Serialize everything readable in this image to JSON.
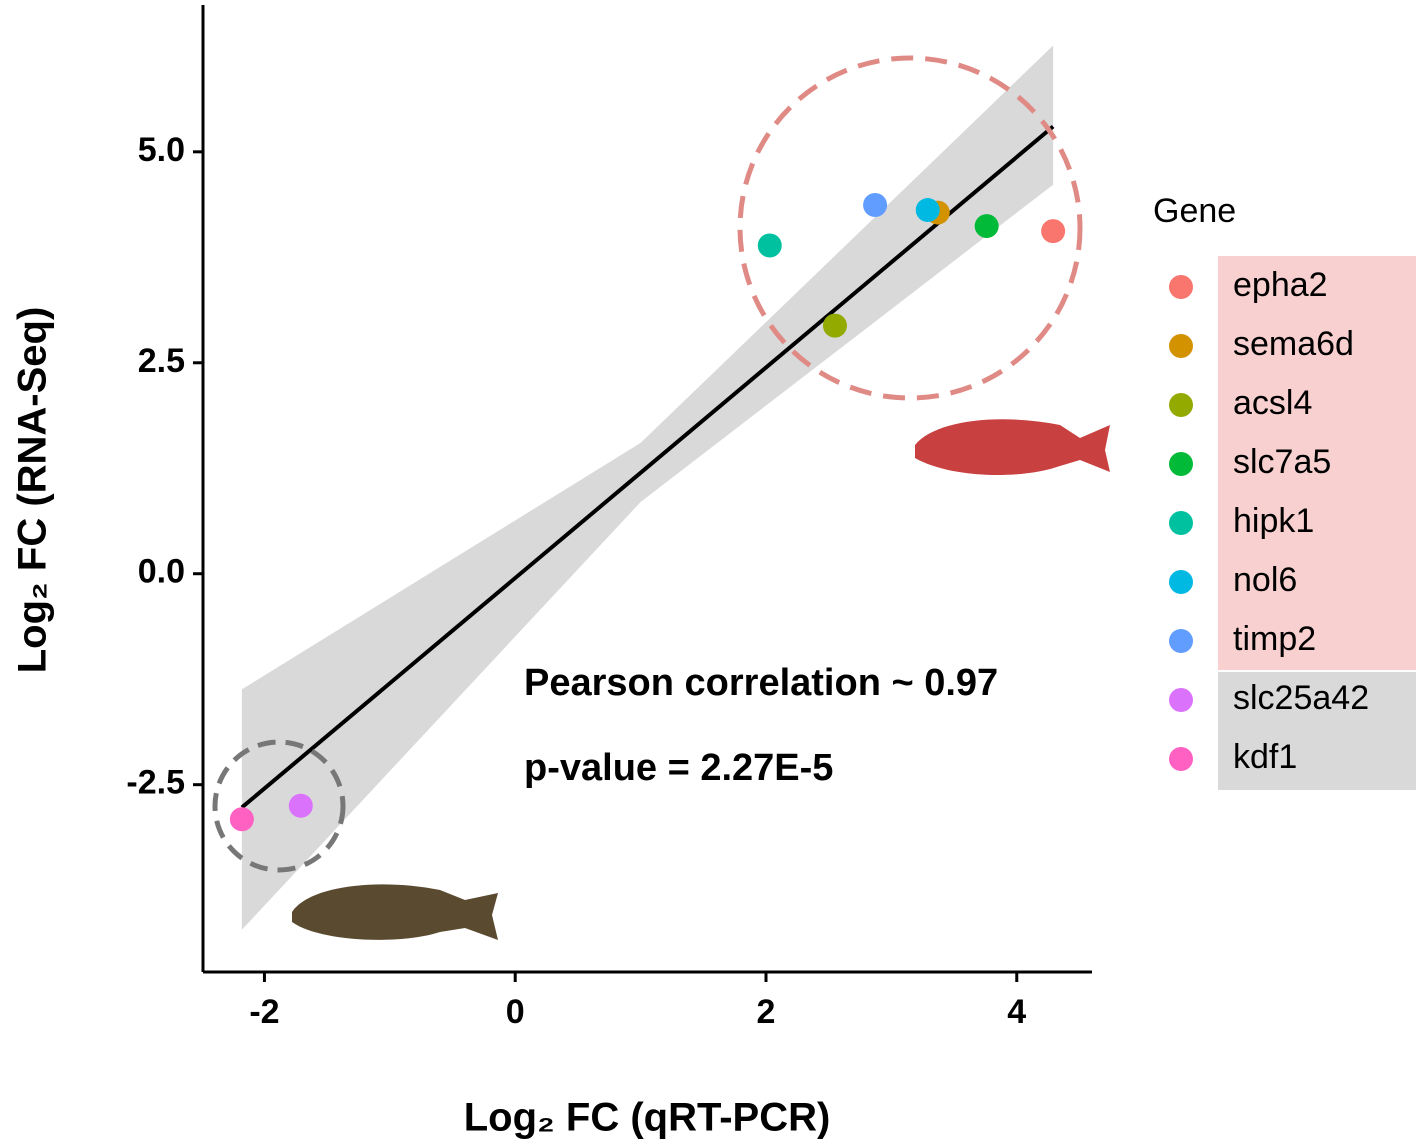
{
  "chart_data": {
    "type": "scatter",
    "x_label": "Log₂ FC (qRT-PCR)",
    "y_label": "Log₂ FC (RNA-Seq)",
    "xlim": [
      -2.49,
      4.6
    ],
    "ylim": [
      -4.72,
      6.74
    ],
    "xticks": [
      -2,
      0,
      2,
      4
    ],
    "yticks": [
      -2.5,
      {
        "value": 0,
        "label": "0.0"
      },
      2.5,
      {
        "value": 5,
        "label": "5.0"
      }
    ],
    "legend_title": "Gene",
    "series": [
      {
        "name": "epha2",
        "color": "#F8766D",
        "x": [
          4.29
        ],
        "values": [
          4.06
        ]
      },
      {
        "name": "sema6d",
        "color": "#D39200",
        "x": [
          3.37
        ],
        "values": [
          4.28
        ]
      },
      {
        "name": "acsl4",
        "color": "#93AA00",
        "x": [
          2.55
        ],
        "values": [
          2.94
        ]
      },
      {
        "name": "slc7a5",
        "color": "#00BA38",
        "x": [
          3.76
        ],
        "values": [
          4.12
        ]
      },
      {
        "name": "hipk1",
        "color": "#00C19F",
        "x": [
          2.03
        ],
        "values": [
          3.89
        ]
      },
      {
        "name": "nol6",
        "color": "#00B9E3",
        "x": [
          3.29
        ],
        "values": [
          4.31
        ]
      },
      {
        "name": "timp2",
        "color": "#619CFF",
        "x": [
          2.87
        ],
        "values": [
          4.37
        ]
      },
      {
        "name": "slc25a42",
        "color": "#DB72FB",
        "x": [
          -1.71
        ],
        "values": [
          -2.75
        ]
      },
      {
        "name": "kdf1",
        "color": "#FF61C3",
        "x": [
          -2.18
        ],
        "values": [
          -2.91
        ]
      }
    ],
    "fit": {
      "x": [
        -2.18,
        4.29
      ],
      "y": [
        -2.77,
        5.3
      ]
    },
    "band": {
      "x": [
        -2.18,
        1.0,
        4.29
      ],
      "lower": [
        -4.22,
        0.85,
        4.61
      ],
      "upper": [
        -1.37,
        1.55,
        6.26
      ]
    },
    "annotations": [
      "Pearson correlation ~ 0.97",
      "p-value = 2.27E-5"
    ]
  }
}
